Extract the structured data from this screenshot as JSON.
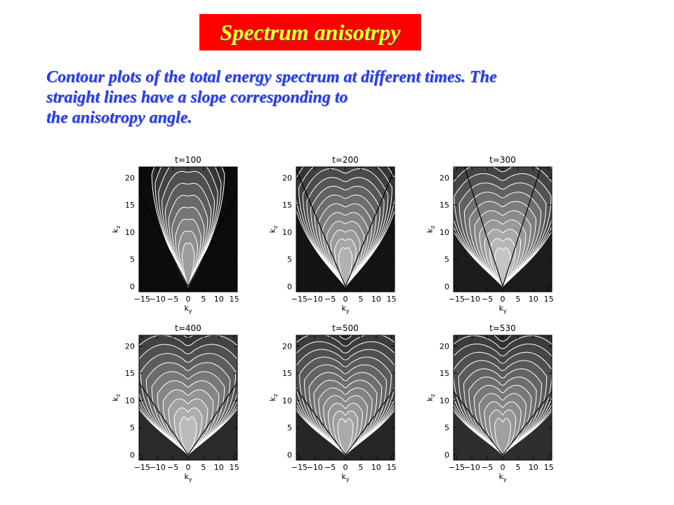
{
  "slide": {
    "title": "Spectrum anisotrpy",
    "caption_lines": [
      "Contour plots of the total energy spectrum at different times. The",
      "straight lines have a slope corresponding to",
      "the anisotropy angle."
    ]
  },
  "colors": {
    "title_bg": "#ff0000",
    "title_text": "#ffff33",
    "caption_text": "#2c3fd6"
  },
  "panels": [
    {
      "time_label": "t=100",
      "xlabel": "k",
      "xlabel_sub": "y",
      "ylabel": "k",
      "ylabel_sub": "z"
    },
    {
      "time_label": "t=200",
      "xlabel": "k",
      "xlabel_sub": "y",
      "ylabel": "k",
      "ylabel_sub": "z"
    },
    {
      "time_label": "t=300",
      "xlabel": "k",
      "xlabel_sub": "y",
      "ylabel": "k",
      "ylabel_sub": "z"
    },
    {
      "time_label": "t=400",
      "xlabel": "k",
      "xlabel_sub": "y",
      "ylabel": "k",
      "ylabel_sub": "z"
    },
    {
      "time_label": "t=500",
      "xlabel": "k",
      "xlabel_sub": "y",
      "ylabel": "k",
      "ylabel_sub": "z"
    },
    {
      "time_label": "t=530",
      "xlabel": "k",
      "xlabel_sub": "y",
      "ylabel": "k",
      "ylabel_sub": "z"
    }
  ],
  "axes": {
    "x_ticks": [
      "−15",
      "−10",
      "−5",
      "0",
      "5",
      "10",
      "15"
    ],
    "x_values": [
      -15,
      -10,
      -5,
      0,
      5,
      10,
      15
    ],
    "y_ticks": [
      "0",
      "5",
      "10",
      "15",
      "20"
    ],
    "y_values": [
      0,
      5,
      10,
      15,
      20
    ],
    "xlim": [
      -16,
      16
    ],
    "ylim": [
      -1,
      22
    ]
  }
}
